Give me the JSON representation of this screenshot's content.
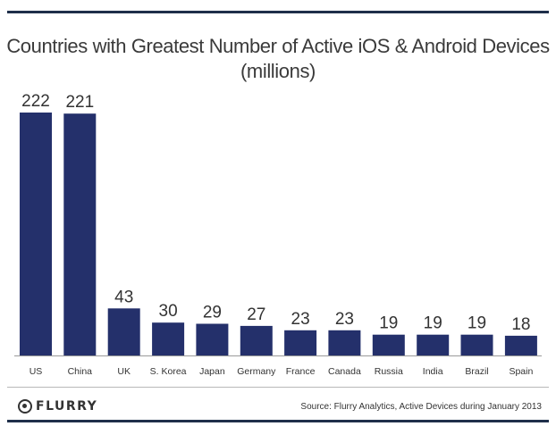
{
  "chart_data": {
    "type": "bar",
    "title": "Countries with Greatest Number of Active iOS & Android Devices",
    "subtitle": "(millions)",
    "categories": [
      "US",
      "China",
      "UK",
      "S. Korea",
      "Japan",
      "Germany",
      "France",
      "Canada",
      "Russia",
      "India",
      "Brazil",
      "Spain"
    ],
    "values": [
      222,
      221,
      43,
      30,
      29,
      27,
      23,
      23,
      19,
      19,
      19,
      18
    ],
    "xlabel": "",
    "ylabel": "",
    "ylim": [
      0,
      222
    ],
    "grid": false,
    "legend": "none",
    "bar_color": "#24306b"
  },
  "footer": {
    "logo_text": "FLURRY",
    "logo_icon": "flurry-logo-icon",
    "source": "Source: Flurry Analytics, Active Devices during January 2013"
  },
  "colors": {
    "rule": "#1f2f4a",
    "bar": "#24306b",
    "text": "#333333"
  }
}
